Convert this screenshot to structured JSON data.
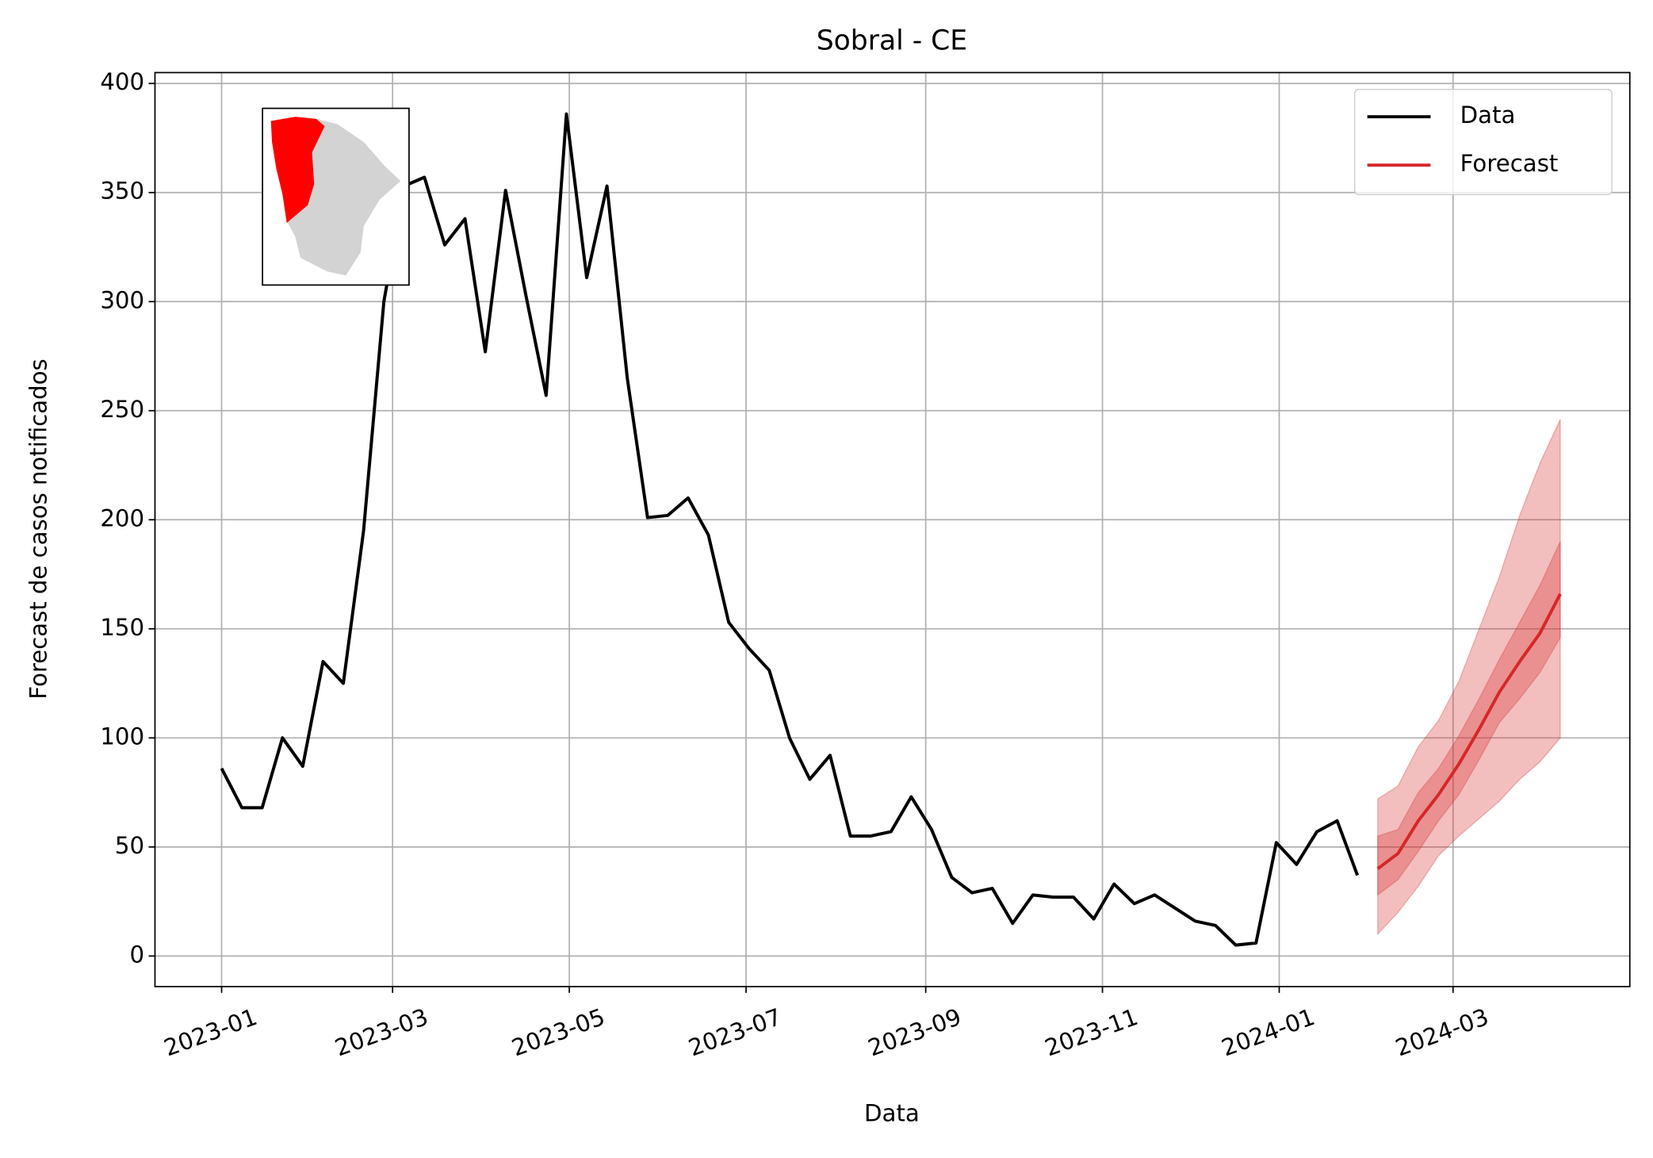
{
  "chart_data": {
    "type": "line",
    "title": "Sobral - CE",
    "xlabel": "Data",
    "ylabel": "Forecast de casos notificados",
    "xlim": [
      "2022-12-09",
      "2024-05-01"
    ],
    "xticks": [
      {
        "value": "2023-01-01",
        "label": "2023-01"
      },
      {
        "value": "2023-03-01",
        "label": "2023-03"
      },
      {
        "value": "2023-05-01",
        "label": "2023-05"
      },
      {
        "value": "2023-07-01",
        "label": "2023-07"
      },
      {
        "value": "2023-09-01",
        "label": "2023-09"
      },
      {
        "value": "2023-11-01",
        "label": "2023-11"
      },
      {
        "value": "2024-01-01",
        "label": "2024-01"
      },
      {
        "value": "2024-03-01",
        "label": "2024-03"
      }
    ],
    "ylim": [
      -14,
      405
    ],
    "yticks": [
      0,
      50,
      100,
      150,
      200,
      250,
      300,
      350,
      400
    ],
    "grid": true,
    "legend": "upper right",
    "series": [
      {
        "name": "Data",
        "color": "#000000",
        "x": [
          "2023-01-01",
          "2023-01-08",
          "2023-01-15",
          "2023-01-22",
          "2023-01-29",
          "2023-02-05",
          "2023-02-12",
          "2023-02-19",
          "2023-02-26",
          "2023-03-05",
          "2023-03-12",
          "2023-03-19",
          "2023-03-26",
          "2023-04-02",
          "2023-04-09",
          "2023-04-16",
          "2023-04-23",
          "2023-04-30",
          "2023-05-07",
          "2023-05-14",
          "2023-05-21",
          "2023-05-28",
          "2023-06-04",
          "2023-06-11",
          "2023-06-18",
          "2023-06-25",
          "2023-07-02",
          "2023-07-09",
          "2023-07-16",
          "2023-07-23",
          "2023-07-30",
          "2023-08-06",
          "2023-08-13",
          "2023-08-20",
          "2023-08-27",
          "2023-09-03",
          "2023-09-10",
          "2023-09-17",
          "2023-09-24",
          "2023-10-01",
          "2023-10-08",
          "2023-10-15",
          "2023-10-22",
          "2023-10-29",
          "2023-11-05",
          "2023-11-12",
          "2023-11-19",
          "2023-11-26",
          "2023-12-03",
          "2023-12-10",
          "2023-12-17",
          "2023-12-24",
          "2023-12-31",
          "2024-01-07",
          "2024-01-14",
          "2024-01-21",
          "2024-01-28"
        ],
        "values": [
          86,
          68,
          68,
          100,
          87,
          135,
          125,
          195,
          300,
          353,
          357,
          326,
          338,
          277,
          351,
          303,
          257,
          386,
          311,
          353,
          265,
          201,
          202,
          210,
          193,
          153,
          141,
          131,
          100,
          81,
          92,
          55,
          55,
          57,
          73,
          58,
          36,
          29,
          31,
          15,
          28,
          27,
          27,
          17,
          33,
          24,
          28,
          22,
          16,
          14,
          5,
          6,
          52,
          42,
          57,
          62,
          37
        ]
      },
      {
        "name": "Forecast",
        "color": "#d62728",
        "x": [
          "2024-02-04",
          "2024-02-11",
          "2024-02-18",
          "2024-02-25",
          "2024-03-03",
          "2024-03-10",
          "2024-03-17",
          "2024-03-24",
          "2024-03-31",
          "2024-04-07"
        ],
        "values": [
          40,
          47,
          62,
          74,
          88,
          104,
          121,
          135,
          148,
          166
        ],
        "intervals": [
          {
            "lower": [
              10,
              20,
              32,
              46,
              55,
              63,
              71,
              81,
              89,
              100
            ],
            "upper": [
              72,
              78,
              96,
              108,
              126,
              150,
              174,
              202,
              226,
              246
            ]
          },
          {
            "lower": [
              28,
              35,
              48,
              62,
              74,
              90,
              107,
              118,
              130,
              146
            ],
            "upper": [
              55,
              58,
              75,
              86,
              101,
              118,
              136,
              153,
              170,
              190
            ]
          }
        ]
      }
    ]
  }
}
